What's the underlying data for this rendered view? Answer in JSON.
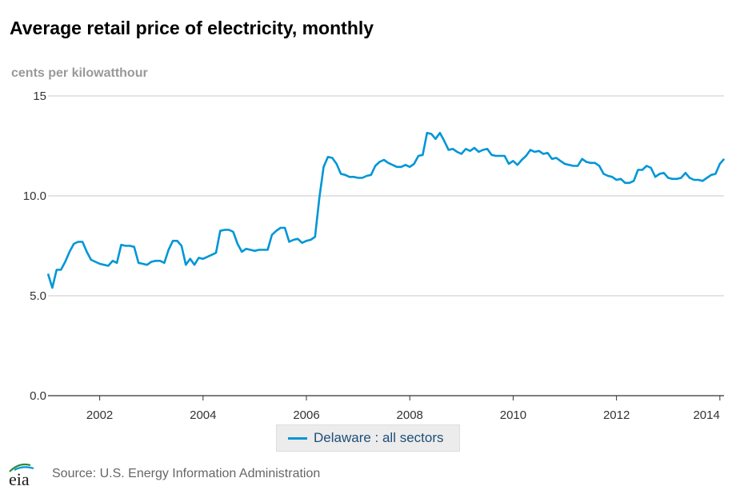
{
  "title": "Average retail price of electricity, monthly",
  "units_label": "cents per kilowatthour",
  "source": "Source: U.S. Energy Information Administration",
  "logo_text": "eia",
  "colors": {
    "series": "#0096d7",
    "grid": "#c8c8c8",
    "axis": "#333333"
  },
  "chart_data": {
    "type": "line",
    "title": "Average retail price of electricity, monthly",
    "ylabel": "cents per kilowatthour",
    "xlabel": "",
    "ylim": [
      0,
      15
    ],
    "xlim": [
      2001.0,
      2014.08
    ],
    "y_ticks": [
      0,
      5,
      10,
      15
    ],
    "y_tick_labels": [
      "0.0",
      "5.0",
      "10.0",
      "15"
    ],
    "x_ticks": [
      2002,
      2004,
      2006,
      2008,
      2010,
      2012,
      2014
    ],
    "x_tick_labels": [
      "2002",
      "2004",
      "2006",
      "2008",
      "2010",
      "2012",
      "2014"
    ],
    "grid": "horizontal",
    "legend_position": "bottom-center",
    "series": [
      {
        "name": "Delaware : all sectors",
        "x": [
          "2001-01",
          "2001-02",
          "2001-03",
          "2001-04",
          "2001-05",
          "2001-06",
          "2001-07",
          "2001-08",
          "2001-09",
          "2001-10",
          "2001-11",
          "2001-12",
          "2002-01",
          "2002-02",
          "2002-03",
          "2002-04",
          "2002-05",
          "2002-06",
          "2002-07",
          "2002-08",
          "2002-09",
          "2002-10",
          "2002-11",
          "2002-12",
          "2003-01",
          "2003-02",
          "2003-03",
          "2003-04",
          "2003-05",
          "2003-06",
          "2003-07",
          "2003-08",
          "2003-09",
          "2003-10",
          "2003-11",
          "2003-12",
          "2004-01",
          "2004-02",
          "2004-03",
          "2004-04",
          "2004-05",
          "2004-06",
          "2004-07",
          "2004-08",
          "2004-09",
          "2004-10",
          "2004-11",
          "2004-12",
          "2005-01",
          "2005-02",
          "2005-03",
          "2005-04",
          "2005-05",
          "2005-06",
          "2005-07",
          "2005-08",
          "2005-09",
          "2005-10",
          "2005-11",
          "2005-12",
          "2006-01",
          "2006-02",
          "2006-03",
          "2006-04",
          "2006-05",
          "2006-06",
          "2006-07",
          "2006-08",
          "2006-09",
          "2006-10",
          "2006-11",
          "2006-12",
          "2007-01",
          "2007-02",
          "2007-03",
          "2007-04",
          "2007-05",
          "2007-06",
          "2007-07",
          "2007-08",
          "2007-09",
          "2007-10",
          "2007-11",
          "2007-12",
          "2008-01",
          "2008-02",
          "2008-03",
          "2008-04",
          "2008-05",
          "2008-06",
          "2008-07",
          "2008-08",
          "2008-09",
          "2008-10",
          "2008-11",
          "2008-12",
          "2009-01",
          "2009-02",
          "2009-03",
          "2009-04",
          "2009-05",
          "2009-06",
          "2009-07",
          "2009-08",
          "2009-09",
          "2009-10",
          "2009-11",
          "2009-12",
          "2010-01",
          "2010-02",
          "2010-03",
          "2010-04",
          "2010-05",
          "2010-06",
          "2010-07",
          "2010-08",
          "2010-09",
          "2010-10",
          "2010-11",
          "2010-12",
          "2011-01",
          "2011-02",
          "2011-03",
          "2011-04",
          "2011-05",
          "2011-06",
          "2011-07",
          "2011-08",
          "2011-09",
          "2011-10",
          "2011-11",
          "2011-12",
          "2012-01",
          "2012-02",
          "2012-03",
          "2012-04",
          "2012-05",
          "2012-06",
          "2012-07",
          "2012-08",
          "2012-09",
          "2012-10",
          "2012-11",
          "2012-12",
          "2013-01",
          "2013-02",
          "2013-03",
          "2013-04",
          "2013-05",
          "2013-06",
          "2013-07",
          "2013-08",
          "2013-09",
          "2013-10",
          "2013-11",
          "2013-12",
          "2014-01",
          "2014-02"
        ],
        "values": [
          6.1,
          5.4,
          6.3,
          6.3,
          6.7,
          7.2,
          7.6,
          7.7,
          7.7,
          7.2,
          6.8,
          6.7,
          6.6,
          6.55,
          6.5,
          6.75,
          6.65,
          7.55,
          7.5,
          7.5,
          7.45,
          6.65,
          6.6,
          6.55,
          6.7,
          6.75,
          6.75,
          6.65,
          7.3,
          7.75,
          7.75,
          7.5,
          6.55,
          6.85,
          6.55,
          6.9,
          6.85,
          6.95,
          7.05,
          7.15,
          8.25,
          8.3,
          8.3,
          8.2,
          7.6,
          7.2,
          7.35,
          7.3,
          7.25,
          7.3,
          7.3,
          7.3,
          8.05,
          8.25,
          8.4,
          8.4,
          7.7,
          7.8,
          7.85,
          7.65,
          7.75,
          7.8,
          7.95,
          9.9,
          11.45,
          11.95,
          11.9,
          11.6,
          11.1,
          11.05,
          10.95,
          10.95,
          10.9,
          10.9,
          11.0,
          11.05,
          11.5,
          11.7,
          11.8,
          11.65,
          11.55,
          11.45,
          11.45,
          11.55,
          11.45,
          11.6,
          12.0,
          12.05,
          13.15,
          13.1,
          12.85,
          13.15,
          12.75,
          12.3,
          12.35,
          12.2,
          12.1,
          12.35,
          12.25,
          12.4,
          12.2,
          12.3,
          12.35,
          12.05,
          12.0,
          12.0,
          12.0,
          11.6,
          11.75,
          11.55,
          11.8,
          12.0,
          12.3,
          12.2,
          12.25,
          12.1,
          12.15,
          11.85,
          11.9,
          11.75,
          11.6,
          11.55,
          11.5,
          11.5,
          11.85,
          11.7,
          11.65,
          11.65,
          11.5,
          11.1,
          11.0,
          10.95,
          10.8,
          10.85,
          10.65,
          10.65,
          10.75,
          11.3,
          11.3,
          11.5,
          11.4,
          10.95,
          11.1,
          11.15,
          10.9,
          10.85,
          10.85,
          10.9,
          11.15,
          10.9,
          10.8,
          10.8,
          10.75,
          10.9,
          11.05,
          11.1,
          11.6,
          11.85
        ]
      }
    ]
  }
}
